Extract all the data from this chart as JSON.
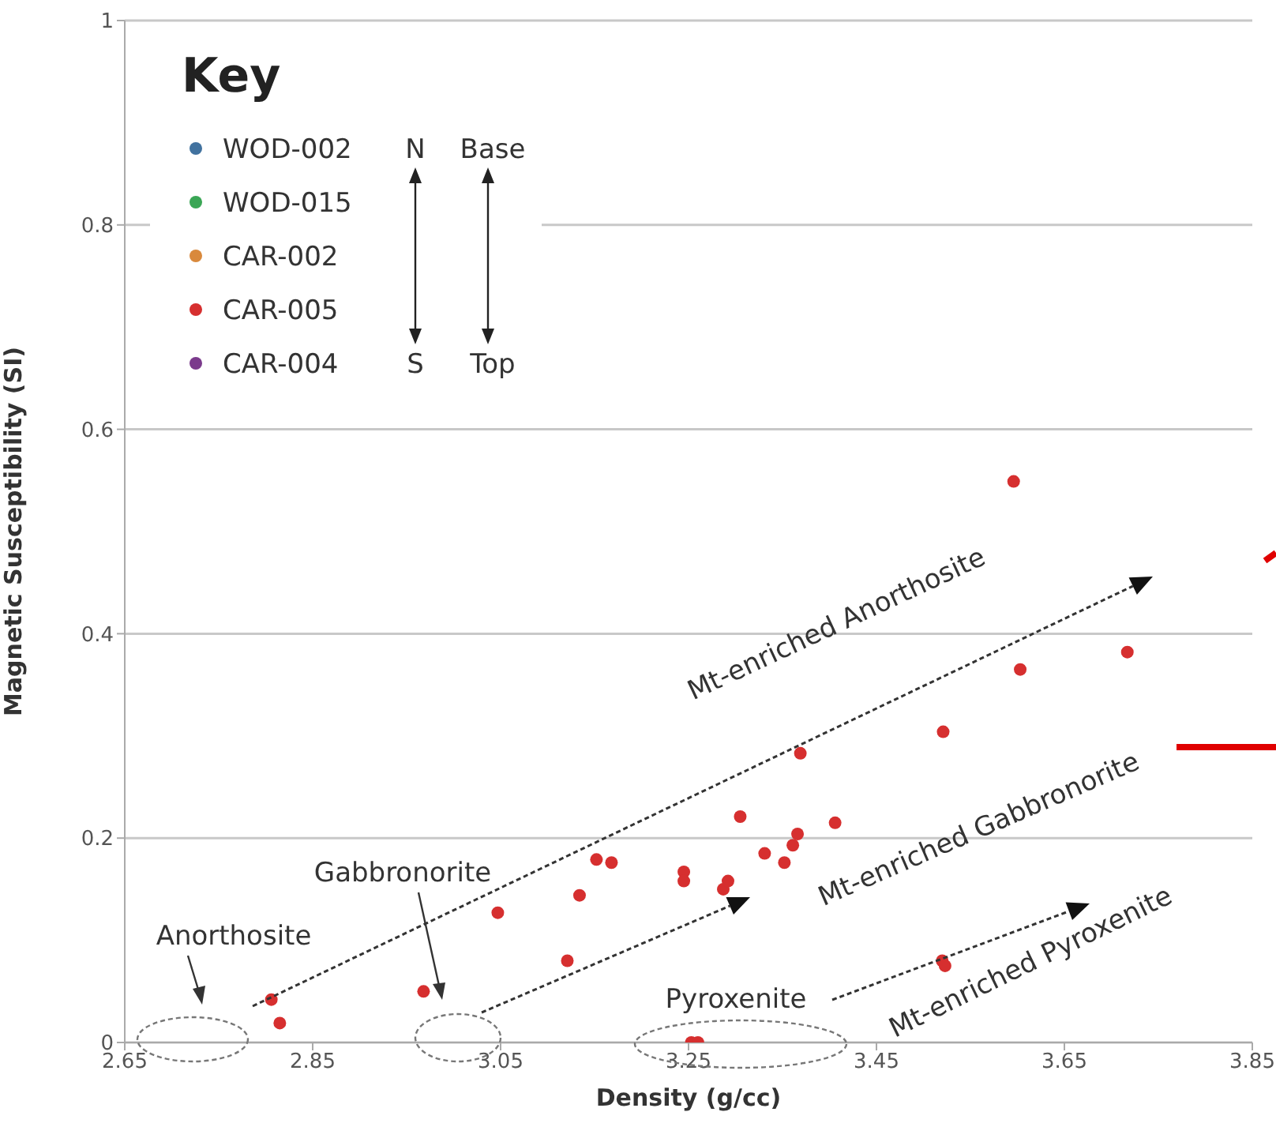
{
  "chart_data": {
    "type": "scatter",
    "xlabel": "Density (g/cc)",
    "ylabel": "Magnetic Susceptibility (SI)",
    "legend_title": "Key",
    "xlim": [
      2.65,
      3.85
    ],
    "xticks": [
      2.65,
      2.85,
      3.05,
      3.25,
      3.45,
      3.65,
      3.85
    ],
    "ylim": [
      0,
      1
    ],
    "yticks": [
      0,
      0.2,
      0.4,
      0.6,
      0.8,
      1
    ],
    "grid": "y",
    "legend": "top left",
    "marker": "circle",
    "annotations": [
      "N",
      "Base",
      "S",
      "Top",
      "Anorthosite",
      "Gabbronorite",
      "Pyroxenite",
      "Mt-enriched Anorthosite",
      "Mt-enriched Gabbronorite",
      "Mt-enriched Pyroxenite"
    ],
    "series": [
      {
        "name": "WOD-002",
        "color": "#41729f"
      },
      {
        "name": "WOD-015",
        "color": "#3aa655"
      },
      {
        "name": "CAR-002",
        "color": "#d9893c"
      },
      {
        "name": "CAR-005",
        "color": "#d62f2f",
        "x": [
          2.806,
          2.815,
          2.968,
          3.047,
          3.121,
          3.134,
          3.152,
          3.168,
          3.245,
          3.245,
          3.253,
          3.26,
          3.287,
          3.292,
          3.305,
          3.331,
          3.352,
          3.361,
          3.366,
          3.369,
          3.406,
          3.52,
          3.523,
          3.521,
          3.596,
          3.603,
          3.717
        ],
        "values": [
          0.042,
          0.019,
          0.05,
          0.127,
          0.08,
          0.144,
          0.179,
          0.176,
          0.167,
          0.158,
          0,
          0,
          0.15,
          0.158,
          0.221,
          0.185,
          0.176,
          0.193,
          0.204,
          0.283,
          0.215,
          0.08,
          0.075,
          0.304,
          0.549,
          0.365,
          0.382
        ]
      },
      {
        "name": "CAR-004",
        "color": "#7b3a8c"
      }
    ]
  }
}
